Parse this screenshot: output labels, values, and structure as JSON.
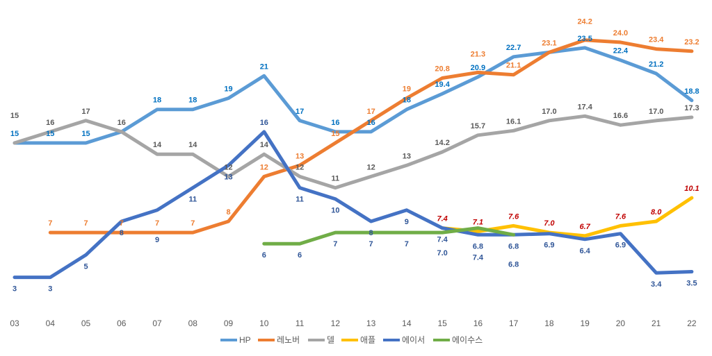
{
  "chart_data": {
    "type": "line",
    "title": "",
    "xlabel": "",
    "ylabel": "",
    "categories": [
      "03",
      "04",
      "05",
      "06",
      "07",
      "08",
      "09",
      "10",
      "11",
      "12",
      "13",
      "14",
      "15",
      "16",
      "17",
      "18",
      "19",
      "20",
      "21",
      "22"
    ],
    "ylim": [
      0,
      27
    ],
    "grid": false,
    "legend_position": "bottom",
    "series": [
      {
        "name": "HP",
        "color": "#5B9BD5",
        "label_color": "#0070C0",
        "label_pos": "above",
        "values": [
          15,
          15,
          15,
          16,
          18,
          18,
          19,
          21,
          17,
          16,
          16,
          18,
          19.4,
          20.9,
          22.7,
          23.1,
          23.5,
          22.4,
          21.2,
          18.8
        ],
        "labels": [
          "15",
          "15",
          "15",
          "",
          "18",
          "18",
          "19",
          "21",
          "17",
          "16",
          "16",
          "18",
          "19.4",
          "20.9",
          "22.7",
          "",
          "23.5",
          "22.4",
          "21.2",
          "18.8"
        ]
      },
      {
        "name": "레노버",
        "color": "#ED7D31",
        "label_color": "#ED7D31",
        "label_pos": "above",
        "values": [
          null,
          7,
          7,
          7,
          7,
          7,
          8,
          12,
          13,
          15,
          17,
          19,
          20.8,
          21.3,
          21.1,
          23.1,
          24.2,
          24.0,
          23.4,
          23.2
        ],
        "labels": [
          "",
          "7",
          "7",
          "7",
          "7",
          "7",
          "8",
          "12",
          "13",
          "15",
          "17",
          "19",
          "20.8",
          "21.3",
          "21.1",
          "23.1",
          "24.2",
          "24.0",
          "23.4",
          "23.2"
        ]
      },
      {
        "name": "델",
        "color": "#A5A5A5",
        "label_color": "#595959",
        "label_pos": "above",
        "values": [
          15,
          16,
          17,
          16,
          14,
          14,
          12,
          14,
          12,
          11,
          12,
          13,
          14.2,
          15.7,
          16.1,
          17.0,
          17.4,
          16.6,
          17.0,
          17.3
        ],
        "labels": [
          "15",
          "16",
          "17",
          "16",
          "14",
          "14",
          "12",
          "14",
          "12",
          "11",
          "12",
          "13",
          "14.2",
          "15.7",
          "16.1",
          "17.0",
          "17.4",
          "16.6",
          "17.0",
          "17.3"
        ]
      },
      {
        "name": "애플",
        "color": "#FFC000",
        "label_color": "#C00000",
        "label_pos": "above",
        "values": [
          null,
          null,
          null,
          null,
          null,
          null,
          null,
          null,
          null,
          null,
          null,
          null,
          7.4,
          7.1,
          7.6,
          7.0,
          6.7,
          7.6,
          8.0,
          10.1
        ],
        "labels": [
          "",
          "",
          "",
          "",
          "",
          "",
          "",
          "",
          "",
          "",
          "",
          "",
          "7.4",
          "7.1",
          "7.6",
          "7.0",
          "6.7",
          "7.6",
          "8.0",
          "10.1"
        ]
      },
      {
        "name": "에이서",
        "color": "#4472C4",
        "label_color": "#2F5597",
        "label_pos": "below",
        "values": [
          3,
          3,
          5,
          8,
          9,
          11,
          13,
          16,
          11,
          10,
          8,
          9,
          7.4,
          6.8,
          6.8,
          6.9,
          6.4,
          6.9,
          3.4,
          3.5
        ],
        "labels": [
          "3",
          "3",
          "5",
          "8",
          "9",
          "11",
          "13",
          "16",
          "11",
          "10",
          "8",
          "9",
          "7.4",
          "6.8",
          "6.8",
          "6.9",
          "6.4",
          "6.9",
          "3.4",
          "3.5"
        ]
      },
      {
        "name": "에이수스",
        "color": "#70AD47",
        "label_color": "#2F5597",
        "label_pos": "below",
        "values": [
          null,
          null,
          null,
          null,
          null,
          null,
          null,
          6,
          6,
          7,
          7,
          7,
          7.0,
          7.4,
          6.8,
          null,
          null,
          null,
          null,
          null
        ],
        "labels": [
          "",
          "",
          "",
          "",
          "",
          "",
          "",
          "6",
          "6",
          "7",
          "7",
          "7",
          "7.0",
          "7.4",
          "6.8",
          "",
          "",
          "",
          "",
          ""
        ]
      }
    ]
  }
}
